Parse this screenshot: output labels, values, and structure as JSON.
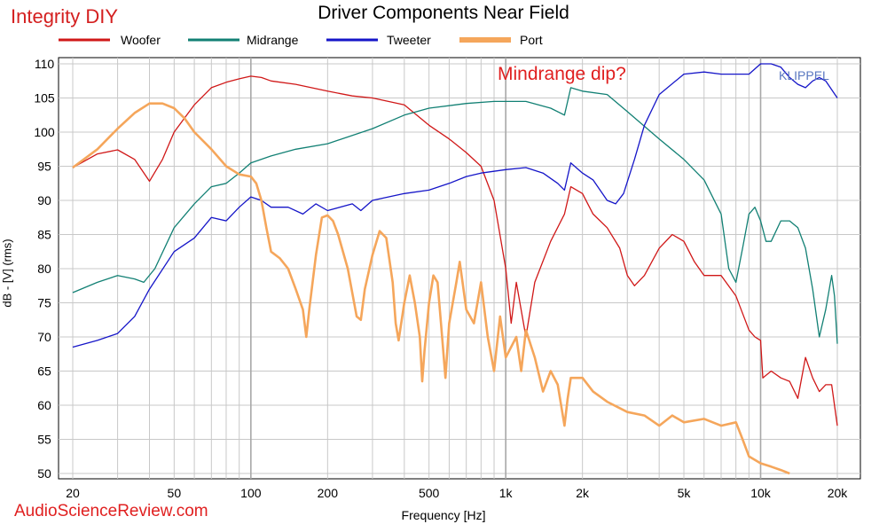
{
  "header": {
    "brand": "Integrity DIY",
    "annotation": "Mindrange dip?",
    "watermark": "KLIPPEL",
    "footer": "AudioScienceReview.com"
  },
  "colors": {
    "woofer": "#d01818",
    "midrange": "#128074",
    "tweeter": "#1515c8",
    "port": "#f5a65b",
    "grid": "#c8c8c8",
    "brand": "#d42020"
  },
  "chart_data": {
    "type": "line",
    "title": "Driver Components Near Field",
    "xlabel": "Frequency [Hz]",
    "ylabel": "dB - [V] (rms)",
    "x_scale": "log",
    "xlim": [
      20,
      20000
    ],
    "ylim": [
      50,
      110
    ],
    "grid": true,
    "legend_position": "top",
    "x_ticks": [
      20,
      50,
      100,
      200,
      500,
      1000,
      2000,
      5000,
      10000,
      20000
    ],
    "x_tick_labels": [
      "20",
      "50",
      "100",
      "200",
      "500",
      "1k",
      "2k",
      "5k",
      "10k",
      "20k"
    ],
    "y_ticks": [
      50,
      55,
      60,
      65,
      70,
      75,
      80,
      85,
      90,
      95,
      100,
      105,
      110
    ],
    "series": [
      {
        "name": "Woofer",
        "points": [
          [
            20,
            94.8
          ],
          [
            25,
            96.8
          ],
          [
            30,
            97.4
          ],
          [
            35,
            96
          ],
          [
            40,
            92.8
          ],
          [
            45,
            96
          ],
          [
            50,
            100
          ],
          [
            60,
            104
          ],
          [
            70,
            106.5
          ],
          [
            80,
            107.3
          ],
          [
            90,
            107.8
          ],
          [
            100,
            108.2
          ],
          [
            110,
            108
          ],
          [
            120,
            107.5
          ],
          [
            150,
            107
          ],
          [
            200,
            106
          ],
          [
            250,
            105.3
          ],
          [
            300,
            105
          ],
          [
            400,
            104
          ],
          [
            500,
            101
          ],
          [
            600,
            99
          ],
          [
            700,
            97
          ],
          [
            800,
            95
          ],
          [
            900,
            90
          ],
          [
            1000,
            80
          ],
          [
            1050,
            72
          ],
          [
            1100,
            78
          ],
          [
            1200,
            70
          ],
          [
            1300,
            78
          ],
          [
            1500,
            84
          ],
          [
            1700,
            88
          ],
          [
            1800,
            92
          ],
          [
            2000,
            91
          ],
          [
            2200,
            88
          ],
          [
            2500,
            86
          ],
          [
            2800,
            83
          ],
          [
            3000,
            79
          ],
          [
            3200,
            77.5
          ],
          [
            3500,
            79
          ],
          [
            4000,
            83
          ],
          [
            4500,
            85
          ],
          [
            5000,
            84
          ],
          [
            5500,
            81
          ],
          [
            6000,
            79
          ],
          [
            7000,
            79
          ],
          [
            8000,
            76
          ],
          [
            9000,
            71
          ],
          [
            9500,
            70
          ],
          [
            10000,
            69.5
          ],
          [
            10200,
            64
          ],
          [
            11000,
            65
          ],
          [
            12000,
            64
          ],
          [
            13000,
            63.5
          ],
          [
            14000,
            61
          ],
          [
            15000,
            67
          ],
          [
            16000,
            64
          ],
          [
            17000,
            62
          ],
          [
            18000,
            63
          ],
          [
            19000,
            63
          ],
          [
            20000,
            57
          ]
        ]
      },
      {
        "name": "Midrange",
        "points": [
          [
            20,
            76.5
          ],
          [
            25,
            78
          ],
          [
            30,
            79
          ],
          [
            35,
            78.5
          ],
          [
            38,
            78
          ],
          [
            42,
            80
          ],
          [
            50,
            86
          ],
          [
            60,
            89.5
          ],
          [
            70,
            92
          ],
          [
            80,
            92.5
          ],
          [
            90,
            94
          ],
          [
            100,
            95.5
          ],
          [
            120,
            96.5
          ],
          [
            150,
            97.5
          ],
          [
            200,
            98.3
          ],
          [
            300,
            100.5
          ],
          [
            400,
            102.5
          ],
          [
            500,
            103.5
          ],
          [
            700,
            104.2
          ],
          [
            900,
            104.5
          ],
          [
            1000,
            104.5
          ],
          [
            1200,
            104.5
          ],
          [
            1500,
            103.5
          ],
          [
            1700,
            102.5
          ],
          [
            1800,
            106.5
          ],
          [
            2000,
            106
          ],
          [
            2500,
            105.5
          ],
          [
            3000,
            103
          ],
          [
            4000,
            99
          ],
          [
            5000,
            96
          ],
          [
            6000,
            93
          ],
          [
            7000,
            88
          ],
          [
            7500,
            80
          ],
          [
            8000,
            78
          ],
          [
            8500,
            83
          ],
          [
            9000,
            88
          ],
          [
            9500,
            89
          ],
          [
            10000,
            87
          ],
          [
            10500,
            84
          ],
          [
            11000,
            84
          ],
          [
            12000,
            87
          ],
          [
            13000,
            87
          ],
          [
            14000,
            86
          ],
          [
            15000,
            83
          ],
          [
            16000,
            77
          ],
          [
            17000,
            70
          ],
          [
            18000,
            74
          ],
          [
            19000,
            79
          ],
          [
            19500,
            76
          ],
          [
            20000,
            69
          ]
        ]
      },
      {
        "name": "Tweeter",
        "points": [
          [
            20,
            68.5
          ],
          [
            25,
            69.5
          ],
          [
            30,
            70.5
          ],
          [
            35,
            73
          ],
          [
            40,
            77
          ],
          [
            50,
            82.5
          ],
          [
            60,
            84.5
          ],
          [
            70,
            87.5
          ],
          [
            80,
            87
          ],
          [
            90,
            89
          ],
          [
            100,
            90.5
          ],
          [
            110,
            90
          ],
          [
            120,
            89
          ],
          [
            140,
            89
          ],
          [
            160,
            88
          ],
          [
            180,
            89.5
          ],
          [
            200,
            88.5
          ],
          [
            250,
            89.5
          ],
          [
            270,
            88.5
          ],
          [
            300,
            90
          ],
          [
            400,
            91
          ],
          [
            500,
            91.5
          ],
          [
            600,
            92.5
          ],
          [
            700,
            93.5
          ],
          [
            800,
            94
          ],
          [
            1000,
            94.5
          ],
          [
            1200,
            94.8
          ],
          [
            1400,
            94
          ],
          [
            1600,
            92.5
          ],
          [
            1700,
            91.5
          ],
          [
            1800,
            95.5
          ],
          [
            2000,
            94
          ],
          [
            2200,
            93
          ],
          [
            2500,
            90
          ],
          [
            2700,
            89.5
          ],
          [
            2900,
            91
          ],
          [
            3200,
            96
          ],
          [
            3500,
            101
          ],
          [
            4000,
            105.5
          ],
          [
            5000,
            108.5
          ],
          [
            6000,
            108.8
          ],
          [
            7000,
            108.5
          ],
          [
            8000,
            108.5
          ],
          [
            9000,
            108.5
          ],
          [
            10000,
            110
          ],
          [
            11000,
            110
          ],
          [
            12000,
            109.5
          ],
          [
            13000,
            108
          ],
          [
            14000,
            107
          ],
          [
            15000,
            106.5
          ],
          [
            16000,
            107.5
          ],
          [
            17000,
            108
          ],
          [
            18000,
            107.5
          ],
          [
            20000,
            105
          ]
        ]
      },
      {
        "name": "Port",
        "points": [
          [
            20,
            94.8
          ],
          [
            25,
            97.5
          ],
          [
            30,
            100.5
          ],
          [
            35,
            102.8
          ],
          [
            40,
            104.2
          ],
          [
            45,
            104.2
          ],
          [
            50,
            103.5
          ],
          [
            55,
            102
          ],
          [
            60,
            100
          ],
          [
            70,
            97.5
          ],
          [
            80,
            95
          ],
          [
            90,
            93.8
          ],
          [
            100,
            93.5
          ],
          [
            105,
            92.5
          ],
          [
            110,
            90
          ],
          [
            115,
            86
          ],
          [
            120,
            82.5
          ],
          [
            130,
            81.5
          ],
          [
            140,
            80
          ],
          [
            150,
            77
          ],
          [
            160,
            74
          ],
          [
            165,
            70
          ],
          [
            170,
            74.5
          ],
          [
            180,
            82
          ],
          [
            190,
            87.5
          ],
          [
            200,
            87.8
          ],
          [
            210,
            87
          ],
          [
            220,
            85
          ],
          [
            240,
            80
          ],
          [
            260,
            73
          ],
          [
            270,
            72.5
          ],
          [
            280,
            77
          ],
          [
            300,
            82
          ],
          [
            320,
            85.5
          ],
          [
            340,
            84.5
          ],
          [
            360,
            78
          ],
          [
            370,
            72
          ],
          [
            380,
            69.5
          ],
          [
            400,
            75
          ],
          [
            420,
            79
          ],
          [
            440,
            75
          ],
          [
            460,
            70
          ],
          [
            470,
            63.5
          ],
          [
            480,
            68
          ],
          [
            500,
            75
          ],
          [
            520,
            79
          ],
          [
            540,
            78
          ],
          [
            560,
            71
          ],
          [
            580,
            64
          ],
          [
            600,
            72
          ],
          [
            640,
            78
          ],
          [
            660,
            81
          ],
          [
            700,
            74
          ],
          [
            750,
            72
          ],
          [
            800,
            78
          ],
          [
            850,
            70
          ],
          [
            900,
            65
          ],
          [
            950,
            73
          ],
          [
            1000,
            67
          ],
          [
            1100,
            70
          ],
          [
            1150,
            65
          ],
          [
            1200,
            71
          ],
          [
            1300,
            67
          ],
          [
            1400,
            62
          ],
          [
            1500,
            65
          ],
          [
            1600,
            63
          ],
          [
            1700,
            57
          ],
          [
            1750,
            61
          ],
          [
            1800,
            64
          ],
          [
            2000,
            64
          ],
          [
            2200,
            62
          ],
          [
            2500,
            60.5
          ],
          [
            3000,
            59
          ],
          [
            3500,
            58.5
          ],
          [
            4000,
            57
          ],
          [
            4500,
            58.5
          ],
          [
            5000,
            57.5
          ],
          [
            6000,
            58
          ],
          [
            7000,
            57
          ],
          [
            8000,
            57.5
          ],
          [
            8500,
            55
          ],
          [
            9000,
            52.5
          ],
          [
            10000,
            51.5
          ],
          [
            11000,
            51
          ],
          [
            12000,
            50.5
          ],
          [
            13000,
            50
          ]
        ]
      }
    ]
  }
}
